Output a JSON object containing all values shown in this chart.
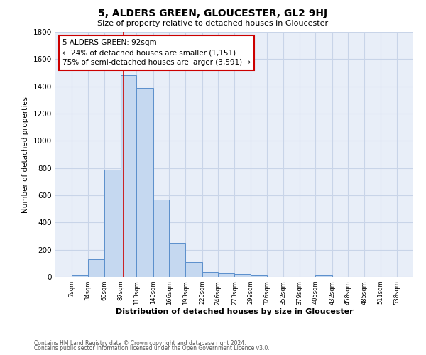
{
  "title": "5, ALDERS GREEN, GLOUCESTER, GL2 9HJ",
  "subtitle": "Size of property relative to detached houses in Gloucester",
  "xlabel": "Distribution of detached houses by size in Gloucester",
  "ylabel": "Number of detached properties",
  "bar_edges": [
    7,
    34,
    60,
    87,
    113,
    140,
    166,
    193,
    220,
    246,
    273,
    299,
    326,
    352,
    379,
    405,
    432,
    458,
    485,
    511,
    538
  ],
  "bar_heights": [
    10,
    130,
    790,
    1480,
    1390,
    570,
    250,
    110,
    35,
    25,
    20,
    10,
    0,
    0,
    0,
    10,
    0,
    0,
    0,
    0
  ],
  "bar_color": "#c5d8f0",
  "bar_edge_color": "#5b8fcc",
  "property_size": 92,
  "vline_x": 92,
  "vline_color": "#cc0000",
  "annotation_title": "5 ALDERS GREEN: 92sqm",
  "annotation_line1": "← 24% of detached houses are smaller (1,151)",
  "annotation_line2": "75% of semi-detached houses are larger (3,591) →",
  "annotation_box_color": "#ffffff",
  "annotation_box_edge_color": "#cc0000",
  "ylim": [
    0,
    1800
  ],
  "yticks": [
    0,
    200,
    400,
    600,
    800,
    1000,
    1200,
    1400,
    1600,
    1800
  ],
  "tick_labels": [
    "7sqm",
    "34sqm",
    "60sqm",
    "87sqm",
    "113sqm",
    "140sqm",
    "166sqm",
    "193sqm",
    "220sqm",
    "246sqm",
    "273sqm",
    "299sqm",
    "326sqm",
    "352sqm",
    "379sqm",
    "405sqm",
    "432sqm",
    "458sqm",
    "485sqm",
    "511sqm",
    "538sqm"
  ],
  "grid_color": "#c8d4e8",
  "bg_color": "#e8eef8",
  "footer1": "Contains HM Land Registry data © Crown copyright and database right 2024.",
  "footer2": "Contains public sector information licensed under the Open Government Licence v3.0."
}
